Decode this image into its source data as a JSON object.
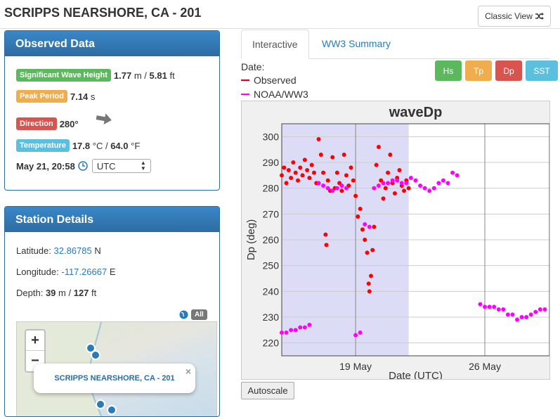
{
  "header": {
    "title": "SCRIPPS NEARSHORE, CA - 201",
    "classic_view": "Classic View",
    "classic_icon": "shuffle-icon"
  },
  "observed": {
    "title": "Observed Data",
    "hs_label": "Significant Wave Height",
    "hs_m": "1.77",
    "hs_sep": "m /",
    "hs_ft": "5.81",
    "hs_ft_unit": "ft",
    "tp_label": "Peak Period",
    "tp_val": "7.14",
    "tp_unit": "s",
    "dir_label": "Direction",
    "dir_val": "280°",
    "temp_label": "Temperature",
    "temp_c": "17.8",
    "temp_sep": "°C /",
    "temp_f": "64.0",
    "temp_f_unit": "°F",
    "datetime": "May 21, 20:58",
    "timezone": "UTC"
  },
  "station": {
    "title": "Station Details",
    "lat_label": "Latitude:",
    "lat_val": "32.86785",
    "lat_dir": "N",
    "lon_label": "Longitude:",
    "lon_val": "-117.26667",
    "lon_dir": "E",
    "depth_label": "Depth:",
    "depth_m": "39",
    "depth_sep": "m /",
    "depth_ft": "127",
    "depth_ft_unit": "ft",
    "all_label": "All",
    "map_popup": "SCRIPPS NEARSHORE, CA - 201",
    "popup_close": "×",
    "zoom_in": "+",
    "zoom_out": "−"
  },
  "tabs": {
    "interactive": "Interactive",
    "ww3": "WW3 Summary"
  },
  "legend": {
    "date_label": "Date:",
    "observed": "Observed",
    "noaa": "NOAA/WW3"
  },
  "buttons": {
    "hs": "Hs",
    "tp": "Tp",
    "dp": "Dp",
    "sst": "SST",
    "autoscale": "Autoscale"
  },
  "colors": {
    "observed": "#ff0000",
    "noaa": "#ff00ff",
    "hs": "#5cb85c",
    "tp": "#f0ad4e",
    "dp": "#d9534f",
    "sst": "#5bc0de",
    "highlight": "#dcdcf7"
  },
  "chart_data": {
    "type": "scatter",
    "title": "waveDp",
    "xlabel": "Date (UTC)",
    "ylabel": "Dp (deg)",
    "x_tick_labels": [
      "19 May",
      "26 May"
    ],
    "yticks": [
      220,
      230,
      240,
      250,
      260,
      270,
      280,
      290,
      300
    ],
    "ylim": [
      215,
      305
    ],
    "xlim": [
      "2018-05-15T00:00",
      "2018-05-29T12:00"
    ],
    "shaded_region": [
      "2018-05-15T00:00",
      "2018-05-21T21:00"
    ],
    "grid": true,
    "series": [
      {
        "name": "Observed",
        "points": [
          [
            "2018-05-15T00:00",
            285
          ],
          [
            "2018-05-15T03:00",
            288
          ],
          [
            "2018-05-15T06:00",
            282
          ],
          [
            "2018-05-15T09:00",
            287
          ],
          [
            "2018-05-15T12:00",
            284
          ],
          [
            "2018-05-15T15:00",
            290
          ],
          [
            "2018-05-15T18:00",
            286
          ],
          [
            "2018-05-15T21:00",
            283
          ],
          [
            "2018-05-16T00:00",
            288
          ],
          [
            "2018-05-16T03:00",
            285
          ],
          [
            "2018-05-16T06:00",
            291
          ],
          [
            "2018-05-16T09:00",
            287
          ],
          [
            "2018-05-16T12:00",
            284
          ],
          [
            "2018-05-16T15:00",
            289
          ],
          [
            "2018-05-16T18:00",
            286
          ],
          [
            "2018-05-16T21:00",
            282
          ],
          [
            "2018-05-17T00:00",
            299
          ],
          [
            "2018-05-17T03:00",
            293
          ],
          [
            "2018-05-17T06:00",
            286
          ],
          [
            "2018-05-17T09:00",
            262
          ],
          [
            "2018-05-17T10:00",
            258
          ],
          [
            "2018-05-17T12:00",
            283
          ],
          [
            "2018-05-17T15:00",
            279
          ],
          [
            "2018-05-17T18:00",
            292
          ],
          [
            "2018-05-17T21:00",
            280
          ],
          [
            "2018-05-18T00:00",
            286
          ],
          [
            "2018-05-18T03:00",
            282
          ],
          [
            "2018-05-18T06:00",
            279
          ],
          [
            "2018-05-18T09:00",
            293
          ],
          [
            "2018-05-18T12:00",
            285
          ],
          [
            "2018-05-18T15:00",
            281
          ],
          [
            "2018-05-18T18:00",
            288
          ],
          [
            "2018-05-18T21:00",
            283
          ],
          [
            "2018-05-19T00:00",
            277
          ],
          [
            "2018-05-19T03:00",
            269
          ],
          [
            "2018-05-19T06:00",
            272
          ],
          [
            "2018-05-19T09:00",
            264
          ],
          [
            "2018-05-19T12:00",
            260
          ],
          [
            "2018-05-19T15:00",
            255
          ],
          [
            "2018-05-19T17:00",
            243
          ],
          [
            "2018-05-19T18:00",
            240
          ],
          [
            "2018-05-19T20:00",
            246
          ],
          [
            "2018-05-19T22:00",
            256
          ],
          [
            "2018-05-20T00:00",
            265
          ],
          [
            "2018-05-20T03:00",
            289
          ],
          [
            "2018-05-20T06:00",
            296
          ],
          [
            "2018-05-20T09:00",
            283
          ],
          [
            "2018-05-20T12:00",
            276
          ],
          [
            "2018-05-20T15:00",
            280
          ],
          [
            "2018-05-20T18:00",
            286
          ],
          [
            "2018-05-20T21:00",
            293
          ],
          [
            "2018-05-21T00:00",
            282
          ],
          [
            "2018-05-21T03:00",
            278
          ],
          [
            "2018-05-21T06:00",
            284
          ],
          [
            "2018-05-21T09:00",
            287
          ],
          [
            "2018-05-21T12:00",
            281
          ],
          [
            "2018-05-21T15:00",
            279
          ],
          [
            "2018-05-21T18:00",
            283
          ],
          [
            "2018-05-21T21:00",
            280
          ]
        ]
      },
      {
        "name": "NOAA/WW3",
        "points": [
          [
            "2018-05-15T00:00",
            224
          ],
          [
            "2018-05-15T06:00",
            224
          ],
          [
            "2018-05-15T12:00",
            225
          ],
          [
            "2018-05-15T18:00",
            225
          ],
          [
            "2018-05-16T00:00",
            226
          ],
          [
            "2018-05-16T06:00",
            226
          ],
          [
            "2018-05-16T12:00",
            227
          ],
          [
            "2018-05-17T00:00",
            282
          ],
          [
            "2018-05-17T06:00",
            281
          ],
          [
            "2018-05-17T12:00",
            280
          ],
          [
            "2018-05-17T18:00",
            279
          ],
          [
            "2018-05-18T00:00",
            280
          ],
          [
            "2018-05-18T06:00",
            281
          ],
          [
            "2018-05-18T12:00",
            280
          ],
          [
            "2018-05-19T00:00",
            223
          ],
          [
            "2018-05-19T06:00",
            224
          ],
          [
            "2018-05-19T12:00",
            266
          ],
          [
            "2018-05-19T18:00",
            265
          ],
          [
            "2018-05-20T00:00",
            280
          ],
          [
            "2018-05-20T06:00",
            281
          ],
          [
            "2018-05-20T12:00",
            282
          ],
          [
            "2018-05-20T18:00",
            282
          ],
          [
            "2018-05-21T00:00",
            283
          ],
          [
            "2018-05-21T06:00",
            283
          ],
          [
            "2018-05-21T12:00",
            282
          ],
          [
            "2018-05-21T18:00",
            282
          ],
          [
            "2018-05-22T00:00",
            284
          ],
          [
            "2018-05-22T06:00",
            283
          ],
          [
            "2018-05-22T12:00",
            281
          ],
          [
            "2018-05-22T18:00",
            280
          ],
          [
            "2018-05-23T00:00",
            279
          ],
          [
            "2018-05-23T06:00",
            280
          ],
          [
            "2018-05-23T12:00",
            282
          ],
          [
            "2018-05-23T18:00",
            283
          ],
          [
            "2018-05-24T00:00",
            282
          ],
          [
            "2018-05-24T06:00",
            286
          ],
          [
            "2018-05-24T12:00",
            285
          ],
          [
            "2018-05-25T18:00",
            235
          ],
          [
            "2018-05-26T00:00",
            234
          ],
          [
            "2018-05-26T06:00",
            234
          ],
          [
            "2018-05-26T12:00",
            234
          ],
          [
            "2018-05-26T18:00",
            233
          ],
          [
            "2018-05-27T00:00",
            233
          ],
          [
            "2018-05-27T06:00",
            231
          ],
          [
            "2018-05-27T12:00",
            231
          ],
          [
            "2018-05-27T18:00",
            229
          ],
          [
            "2018-05-28T00:00",
            230
          ],
          [
            "2018-05-28T06:00",
            230
          ],
          [
            "2018-05-28T12:00",
            231
          ],
          [
            "2018-05-28T18:00",
            232
          ],
          [
            "2018-05-29T00:00",
            233
          ],
          [
            "2018-05-29T06:00",
            233
          ]
        ]
      }
    ]
  }
}
